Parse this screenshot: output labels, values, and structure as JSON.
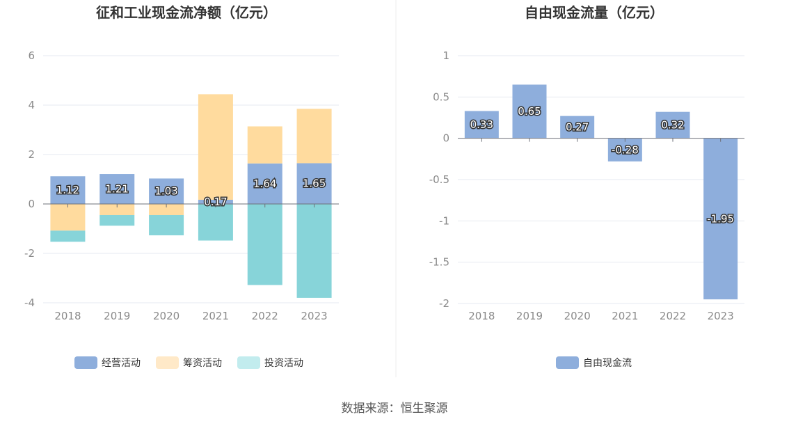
{
  "colors": {
    "operating": "#8eaedc",
    "financing": "#ffdb9e",
    "investing": "#87d4d9",
    "free_cash_flow": "#8eaedc",
    "legend_operating": "#8eaedc",
    "legend_financing": "#ffe9c8",
    "legend_investing": "#c2ecee",
    "grid": "#e6e9f0",
    "axis": "#6e7079"
  },
  "chart_data": [
    {
      "type": "bar",
      "stacked": true,
      "title": "征和工业现金流净额（亿元）",
      "categories": [
        "2018",
        "2019",
        "2020",
        "2021",
        "2022",
        "2023"
      ],
      "series": [
        {
          "name": "经营活动",
          "values": [
            1.12,
            1.21,
            1.03,
            0.17,
            1.64,
            1.65
          ],
          "show_labels": true
        },
        {
          "name": "筹资活动",
          "values": [
            -1.08,
            -0.45,
            -0.45,
            4.27,
            1.5,
            2.2
          ],
          "show_labels": false
        },
        {
          "name": "投资活动",
          "values": [
            -0.45,
            -0.43,
            -0.82,
            -1.48,
            -3.28,
            -3.8
          ],
          "show_labels": false
        }
      ],
      "ylim": [
        -4,
        6
      ],
      "yticks": [
        "6",
        "4",
        "2",
        "0",
        "-2",
        "-4"
      ],
      "ytick_values": [
        6,
        4,
        2,
        0,
        -2,
        -4
      ],
      "grid": true,
      "legend_position": "bottom"
    },
    {
      "type": "bar",
      "title": "自由现金流量（亿元）",
      "categories": [
        "2018",
        "2019",
        "2020",
        "2021",
        "2022",
        "2023"
      ],
      "series": [
        {
          "name": "自由现金流",
          "values": [
            0.33,
            0.65,
            0.27,
            -0.28,
            0.32,
            -1.95
          ],
          "show_labels": true
        }
      ],
      "ylim": [
        -2,
        1
      ],
      "yticks": [
        "1",
        "0.5",
        "0",
        "-0.5",
        "-1",
        "-1.5",
        "-2"
      ],
      "ytick_values": [
        1,
        0.5,
        0,
        -0.5,
        -1,
        -1.5,
        -2
      ],
      "grid": true,
      "legend_position": "bottom"
    }
  ],
  "footer": {
    "source": "数据来源：恒生聚源"
  }
}
